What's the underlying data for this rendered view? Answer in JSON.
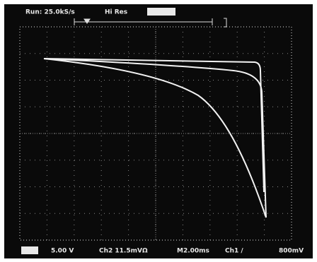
{
  "header": {
    "status": "Run: 25.0kS/s",
    "mode": "Hi Res"
  },
  "footer": {
    "ch1_scale": "5.00 V",
    "ch2_scale": "Ch2  11.5mVΩ",
    "timebase": "M2.00ms",
    "trigger_source": "Ch1 /",
    "trigger_level": "800mV"
  }
}
